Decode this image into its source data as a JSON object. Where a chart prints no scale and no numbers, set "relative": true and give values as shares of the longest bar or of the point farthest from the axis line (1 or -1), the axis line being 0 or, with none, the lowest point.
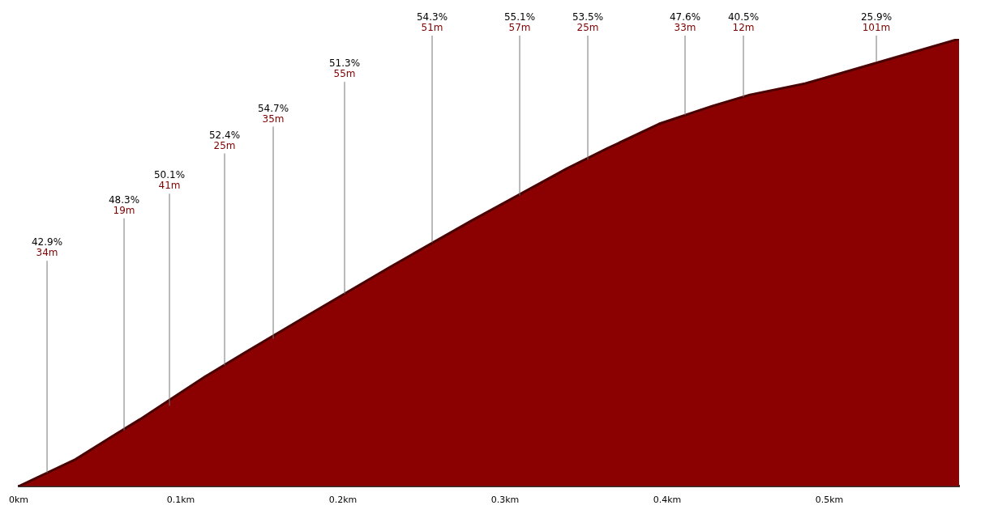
{
  "chart_data": {
    "type": "area",
    "relative": true,
    "color": "#8b0000",
    "x": [
      0,
      0.035,
      0.057,
      0.075,
      0.115,
      0.14,
      0.175,
      0.229,
      0.28,
      0.338,
      0.363,
      0.395,
      0.428,
      0.451,
      0.485,
      0.58
    ],
    "values": [
      0,
      0.06,
      0.11,
      0.15,
      0.245,
      0.3,
      0.375,
      0.49,
      0.595,
      0.71,
      0.755,
      0.81,
      0.85,
      0.875,
      0.9,
      1
    ],
    "xlim": [
      0,
      0.58
    ],
    "xticks": [
      {
        "value": 0,
        "label": "0km"
      },
      {
        "value": 0.1,
        "label": "0.1km"
      },
      {
        "value": 0.2,
        "label": "0.2km"
      },
      {
        "value": 0.3,
        "label": "0.3km"
      },
      {
        "value": 0.4,
        "label": "0.4km"
      },
      {
        "value": 0.5,
        "label": "0.5km"
      }
    ],
    "grid": false,
    "legend": false,
    "annotations": [
      {
        "text": "42.9%\n34m",
        "x": 0.0175,
        "y": 0.03
      },
      {
        "text": "48.3%\n19m",
        "x": 0.065,
        "y": 0.125
      },
      {
        "text": "50.1%\n41m",
        "x": 0.093,
        "y": 0.18
      },
      {
        "text": "52.4%\n25m",
        "x": 0.127,
        "y": 0.27
      },
      {
        "text": "54.7%\n35m",
        "x": 0.157,
        "y": 0.33
      },
      {
        "text": "51.3%\n55m",
        "x": 0.201,
        "y": 0.43
      },
      {
        "text": "54.3%\n51m",
        "x": 0.255,
        "y": 0.545
      },
      {
        "text": "55.1%\n57m",
        "x": 0.309,
        "y": 0.65
      },
      {
        "text": "53.5%\n25m",
        "x": 0.351,
        "y": 0.73
      },
      {
        "text": "47.6%\n33m",
        "x": 0.411,
        "y": 0.83
      },
      {
        "text": "40.5%\n12m",
        "x": 0.447,
        "y": 0.87
      },
      {
        "text": "25.9%\n101m",
        "x": 0.529,
        "y": 0.95
      }
    ]
  }
}
